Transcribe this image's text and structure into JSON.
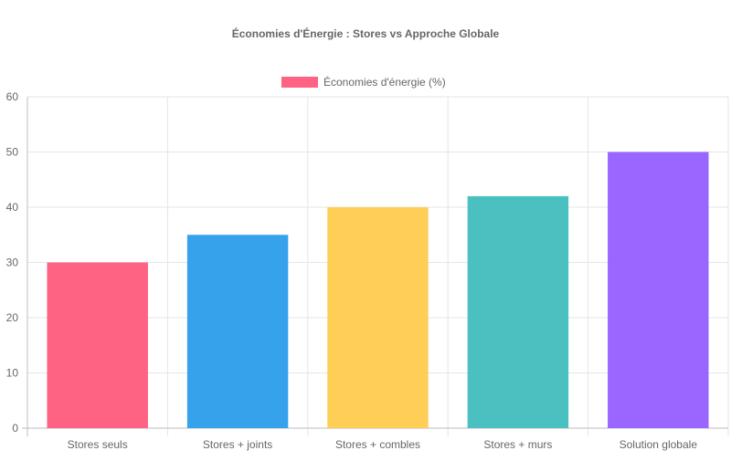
{
  "chart_data": {
    "type": "bar",
    "title": "Économies d'Énergie : Stores vs Approche Globale",
    "categories": [
      "Stores seuls",
      "Stores + joints",
      "Stores + combles",
      "Stores + murs",
      "Solution globale"
    ],
    "series": [
      {
        "name": "Économies d'énergie (%)",
        "values": [
          30,
          35,
          40,
          42,
          50
        ]
      }
    ],
    "bar_colors": [
      "#ff6384",
      "#36a2eb",
      "#ffce56",
      "#4bc0c0",
      "#9966ff"
    ],
    "legend_color": "#ff6384",
    "ylim": [
      0,
      60
    ],
    "yticks": [
      "0",
      "10",
      "20",
      "30",
      "40",
      "50",
      "60"
    ],
    "grid": true,
    "legend_position": "top",
    "xlabel": "",
    "ylabel": ""
  }
}
